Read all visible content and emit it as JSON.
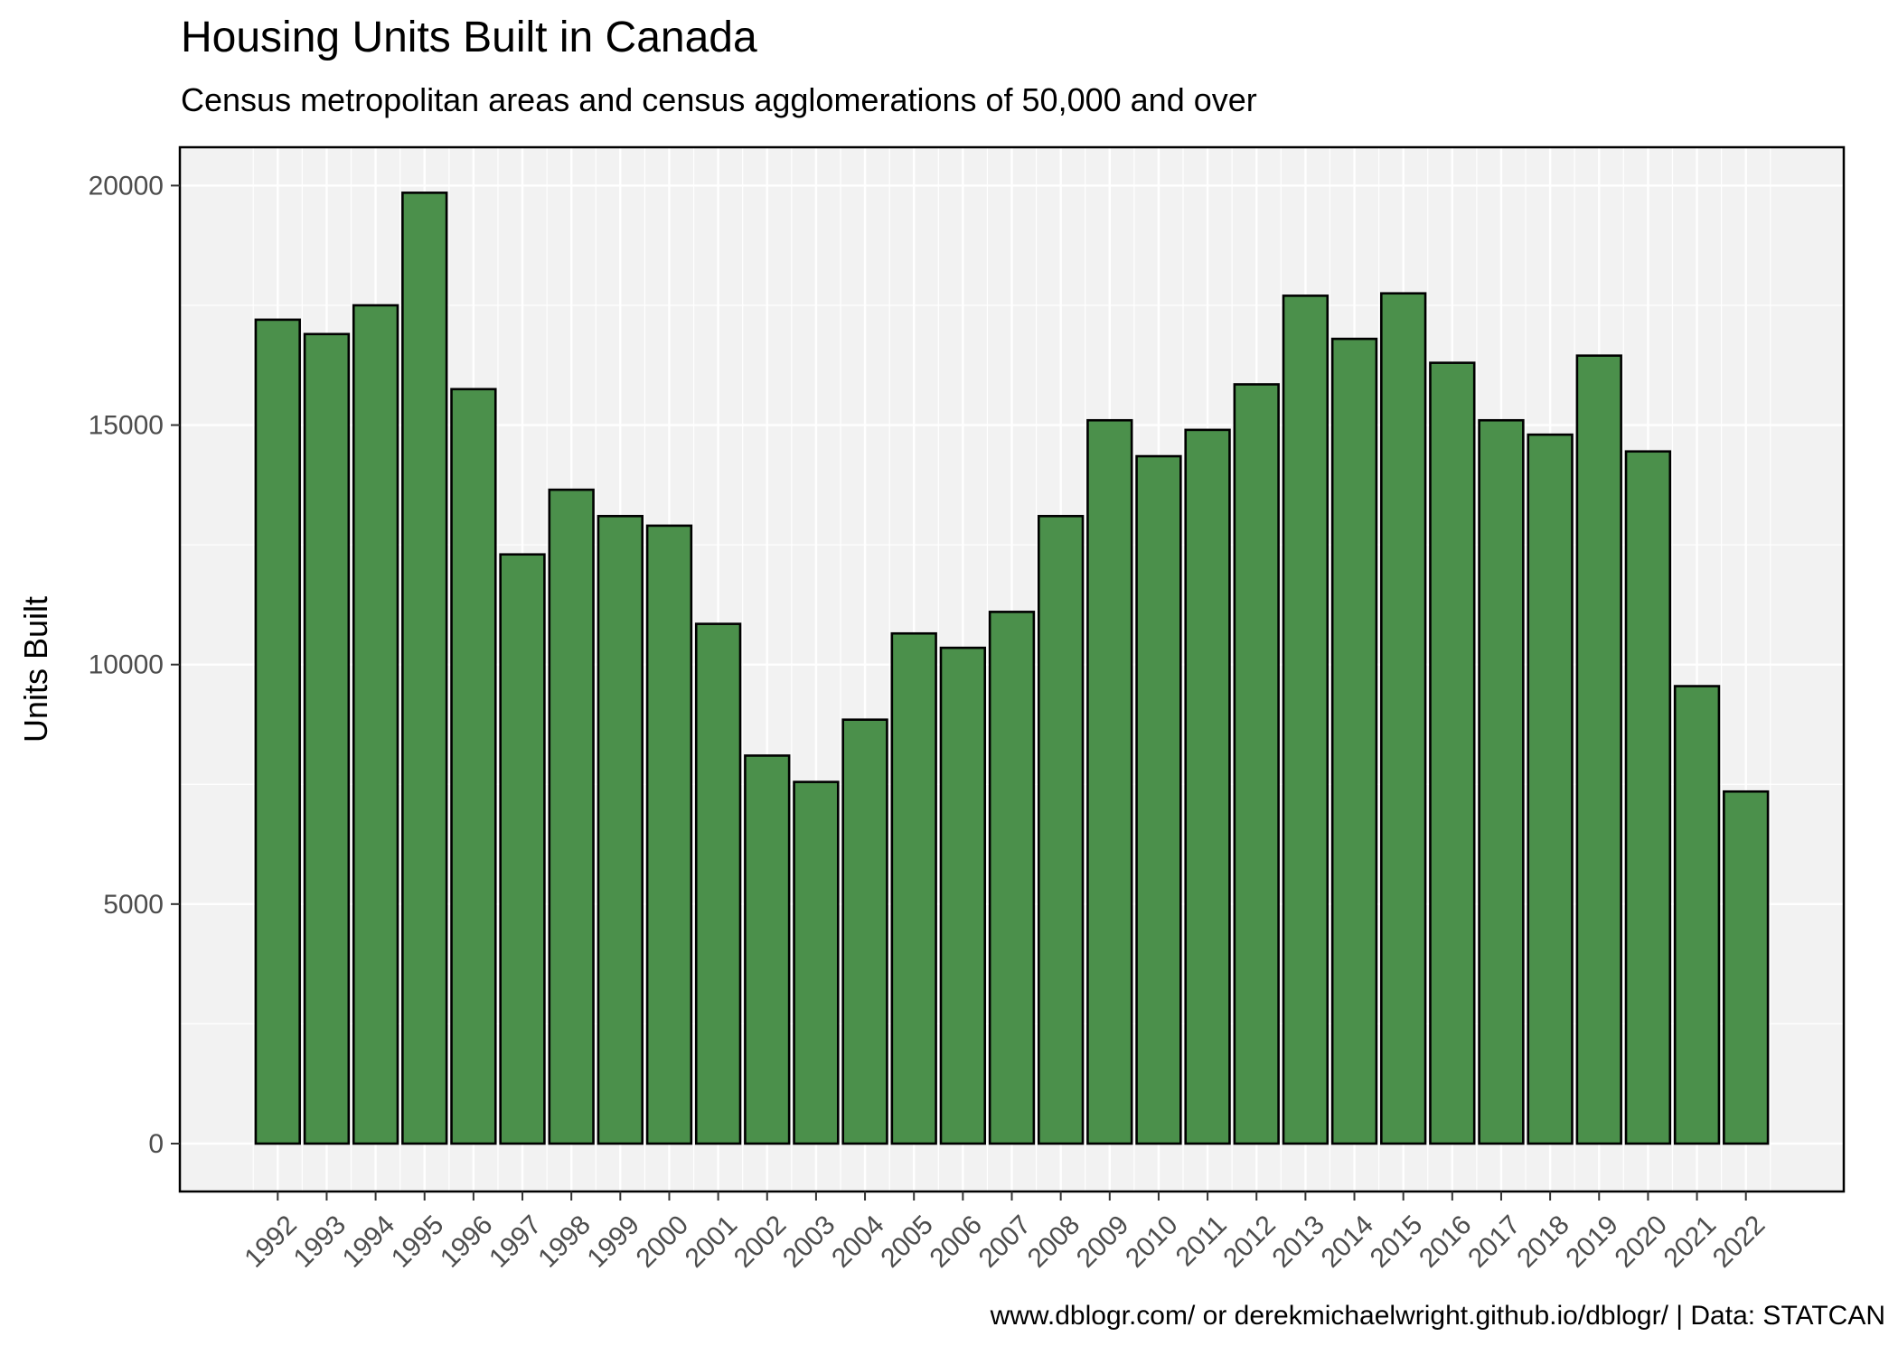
{
  "chart_data": {
    "type": "bar",
    "title": "Housing Units Built in Canada",
    "subtitle": "Census metropolitan areas and census agglomerations of 50,000 and over",
    "xlabel": "",
    "ylabel": "Units Built",
    "caption": "www.dblogr.com/ or derekmichaelwright.github.io/dblogr/ | Data: STATCAN",
    "categories": [
      "1992",
      "1993",
      "1994",
      "1995",
      "1996",
      "1997",
      "1998",
      "1999",
      "2000",
      "2001",
      "2002",
      "2003",
      "2004",
      "2005",
      "2006",
      "2007",
      "2008",
      "2009",
      "2010",
      "2011",
      "2012",
      "2013",
      "2014",
      "2015",
      "2016",
      "2017",
      "2018",
      "2019",
      "2020",
      "2021",
      "2022"
    ],
    "values": [
      17200,
      16900,
      17500,
      19850,
      15750,
      12300,
      13650,
      13100,
      12900,
      10850,
      8100,
      7550,
      8850,
      10650,
      10350,
      11100,
      13100,
      15100,
      14350,
      14900,
      15850,
      17700,
      16800,
      17750,
      16300,
      15100,
      14800,
      16450,
      14450,
      9550,
      7350
    ],
    "ylim": [
      -1000,
      20800
    ],
    "yticks": [
      0,
      5000,
      10000,
      15000,
      20000
    ],
    "grid": true,
    "legend": "none",
    "bar_fill": "#4b904b",
    "bar_stroke": "#000000",
    "panel_background": "#f2f2f2",
    "grid_color": "#ffffff"
  }
}
